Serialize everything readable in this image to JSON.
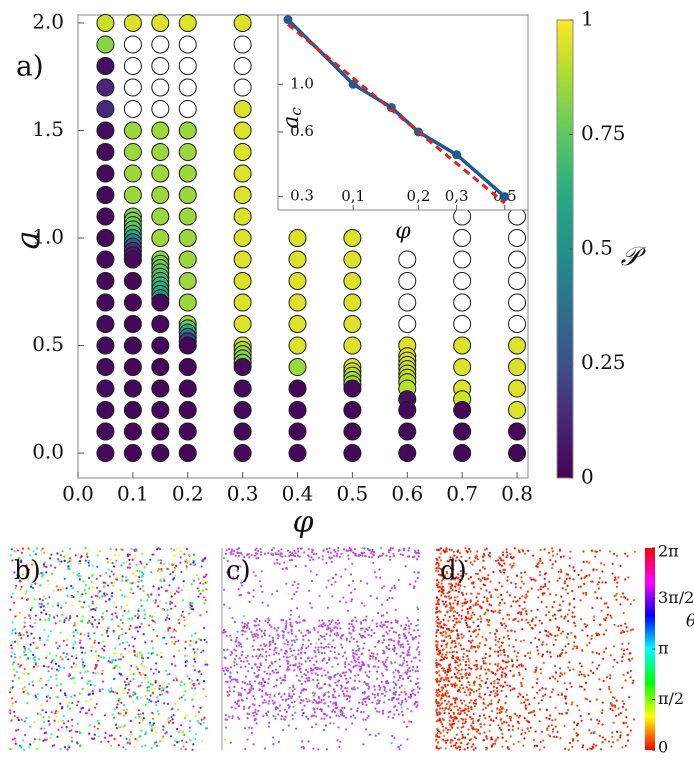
{
  "chart_data": [
    {
      "type": "scatter",
      "panel_label": "a)",
      "xlabel": "φ",
      "ylabel": "a",
      "xlim": [
        0,
        0.82
      ],
      "ylim": [
        -0.116,
        2.037
      ],
      "xticks": [
        {
          "value": 0,
          "label": "0.0"
        },
        0.1,
        0.2,
        0.3,
        0.4,
        0.5,
        0.6,
        0.7,
        0.8
      ],
      "yticks": [
        {
          "value": 0,
          "label": "0.0"
        },
        0.5,
        {
          "value": 1,
          "label": "1.0"
        },
        1.5,
        {
          "value": 2,
          "label": "2.0"
        }
      ],
      "open_color": "#ffffff",
      "edge_color": "#1a1a1a",
      "columns": [
        {
          "x": 0.05,
          "y": [
            2.0,
            1.9,
            1.8,
            1.7,
            1.6,
            1.5,
            1.4,
            1.3,
            1.2,
            1.1,
            1.0,
            0.9,
            0.8,
            0.7,
            0.6,
            0.5,
            0.4,
            0.3,
            0.2,
            0.1,
            0.0
          ],
          "values": [
            0.92,
            0.82,
            0.05,
            0.12,
            0.13,
            0.04,
            0.03,
            0.03,
            0.03,
            0.03,
            0.03,
            0.03,
            0.03,
            0.03,
            0.03,
            0.03,
            0.03,
            0.03,
            0.03,
            0.03,
            0.03
          ]
        },
        {
          "x": 0.1,
          "y": [
            2.0,
            1.9,
            1.8,
            1.7,
            1.6,
            1.5,
            1.4,
            1.3,
            1.2,
            1.1,
            1.08,
            1.06,
            1.04,
            1.02,
            1.0,
            0.98,
            0.96,
            0.94,
            0.92,
            0.9,
            0.8,
            0.7,
            0.6,
            0.5,
            0.4,
            0.3,
            0.2,
            0.1,
            0.0
          ],
          "values": [
            0.95,
            null,
            null,
            null,
            null,
            0.85,
            0.85,
            0.85,
            0.85,
            0.82,
            0.8,
            0.78,
            0.75,
            0.7,
            0.6,
            0.45,
            0.3,
            0.15,
            0.08,
            0.03,
            0.02,
            0.02,
            0.02,
            0.02,
            0.02,
            0.02,
            0.02,
            0.02,
            0.02
          ]
        },
        {
          "x": 0.15,
          "y": [
            2.0,
            1.9,
            1.8,
            1.7,
            1.6,
            1.5,
            1.4,
            1.3,
            1.2,
            1.1,
            1.0,
            0.9,
            0.88,
            0.86,
            0.84,
            0.82,
            0.8,
            0.78,
            0.76,
            0.74,
            0.72,
            0.7,
            0.6,
            0.5,
            0.4,
            0.3,
            0.2,
            0.1,
            0.0
          ],
          "values": [
            0.95,
            null,
            null,
            null,
            null,
            0.85,
            0.85,
            0.85,
            0.85,
            0.85,
            0.85,
            0.85,
            0.8,
            0.78,
            0.75,
            0.72,
            0.7,
            0.68,
            0.65,
            0.6,
            0.55,
            0.02,
            0.02,
            0.02,
            0.02,
            0.02,
            0.02,
            0.02,
            0.02
          ]
        },
        {
          "x": 0.2,
          "y": [
            2.0,
            1.9,
            1.8,
            1.7,
            1.6,
            1.5,
            1.4,
            1.3,
            1.2,
            1.1,
            1.0,
            0.9,
            0.8,
            0.7,
            0.6,
            0.58,
            0.56,
            0.54,
            0.52,
            0.5,
            0.4,
            0.3,
            0.2,
            0.1,
            0.0
          ],
          "values": [
            0.95,
            null,
            null,
            null,
            null,
            0.85,
            0.85,
            0.85,
            0.85,
            0.85,
            0.85,
            0.85,
            0.85,
            0.85,
            0.85,
            0.75,
            0.6,
            0.4,
            0.2,
            0.02,
            0.02,
            0.02,
            0.02,
            0.02,
            0.02
          ]
        },
        {
          "x": 0.3,
          "y": [
            2.0,
            1.9,
            1.8,
            1.7,
            1.6,
            1.5,
            1.4,
            1.3,
            1.2,
            1.1,
            1.0,
            0.9,
            0.8,
            0.7,
            0.6,
            0.5,
            0.48,
            0.46,
            0.44,
            0.42,
            0.4,
            0.3,
            0.2,
            0.1,
            0.0
          ],
          "values": [
            0.95,
            null,
            null,
            null,
            0.95,
            0.95,
            0.95,
            0.95,
            0.95,
            0.95,
            0.95,
            0.95,
            0.95,
            0.95,
            0.95,
            0.95,
            0.88,
            0.85,
            0.82,
            0.8,
            0.03,
            0.03,
            0.03,
            0.03,
            0.03
          ]
        },
        {
          "x": 0.4,
          "y": [
            1.0,
            0.9,
            0.8,
            0.7,
            0.6,
            0.5,
            0.4,
            0.3,
            0.2,
            0.1,
            0.0
          ],
          "values": [
            0.95,
            0.95,
            0.95,
            0.95,
            0.95,
            0.95,
            0.85,
            0.02,
            0.02,
            0.02,
            0.02
          ]
        },
        {
          "x": 0.5,
          "y": [
            1.0,
            0.9,
            0.8,
            0.7,
            0.6,
            0.5,
            0.4,
            0.38,
            0.36,
            0.34,
            0.32,
            0.3,
            0.2,
            0.1,
            0.0
          ],
          "values": [
            0.95,
            0.95,
            0.95,
            0.95,
            0.95,
            0.95,
            0.95,
            0.92,
            0.9,
            0.88,
            0.85,
            0.02,
            0.02,
            0.02,
            0.02
          ]
        },
        {
          "x": 0.6,
          "y": [
            0.9,
            0.8,
            0.7,
            0.6,
            0.5,
            0.45,
            0.43,
            0.41,
            0.39,
            0.37,
            0.35,
            0.33,
            0.3,
            0.25,
            0.2,
            0.1,
            0.0
          ],
          "values": [
            null,
            null,
            null,
            null,
            0.95,
            0.95,
            0.95,
            0.93,
            0.93,
            0.92,
            0.92,
            0.9,
            0.9,
            0.05,
            0.02,
            0.02,
            0.02
          ]
        },
        {
          "x": 0.7,
          "y": [
            1.1,
            1.0,
            0.9,
            0.8,
            0.7,
            0.6,
            0.5,
            0.4,
            0.3,
            0.25,
            0.2,
            0.1,
            0.0
          ],
          "values": [
            null,
            null,
            null,
            null,
            null,
            null,
            0.95,
            0.95,
            0.95,
            0.93,
            0.02,
            0.02,
            0.02
          ]
        },
        {
          "x": 0.8,
          "y": [
            1.1,
            1.0,
            0.9,
            0.8,
            0.7,
            0.6,
            0.5,
            0.4,
            0.3,
            0.2,
            0.1,
            0.0
          ],
          "values": [
            null,
            null,
            null,
            null,
            null,
            null,
            0.95,
            0.95,
            0.95,
            0.95,
            0.02,
            0.02
          ]
        }
      ],
      "colorbar": {
        "label": "𝒫",
        "colormap": "viridis",
        "lim": [
          0,
          1
        ],
        "ticks": [
          0,
          0.25,
          0.5,
          0.75,
          1
        ]
      }
    },
    {
      "type": "line",
      "xlabel": "φ",
      "ylabel": "a",
      "ylabel_sub": "c",
      "xscale": "log",
      "yscale": "log",
      "xlim": [
        0.045,
        0.64
      ],
      "ylim": [
        0.26,
        2.1
      ],
      "xticks": [
        {
          "value": 0.1,
          "label": "0,1"
        },
        {
          "value": 0.2,
          "label": "0,2"
        },
        {
          "value": 0.3,
          "label": "0,3"
        },
        {
          "value": 0.5,
          "label": "0,5"
        }
      ],
      "yticks": [
        0.3,
        0.6,
        {
          "value": 1,
          "label": "1.0"
        }
      ],
      "series": [
        {
          "color": "#1f5a94",
          "marker": true,
          "x": [
            0.05,
            0.1,
            0.15,
            0.2,
            0.3,
            0.5
          ],
          "values": [
            2.0,
            1.0,
            0.78,
            0.6,
            0.47,
            0.3
          ]
        },
        {
          "color": "#e3201b",
          "dashed": true,
          "x": [
            0.05,
            0.5
          ],
          "values": [
            1.9,
            0.28
          ]
        }
      ]
    }
  ],
  "snapshots": [
    {
      "label": "b)"
    },
    {
      "label": "c)"
    },
    {
      "label": "d)"
    }
  ],
  "phase_colorbar": {
    "label": "θ",
    "colormap": "hsv",
    "lim": [
      0,
      6.2832
    ],
    "ticks": [
      0,
      {
        "value": 1.5708,
        "label": "π/2"
      },
      {
        "value": 3.1416,
        "label": "π"
      },
      {
        "value": 4.7124,
        "label": "3π/2"
      },
      {
        "value": 6.2832,
        "label": "2π"
      }
    ]
  }
}
